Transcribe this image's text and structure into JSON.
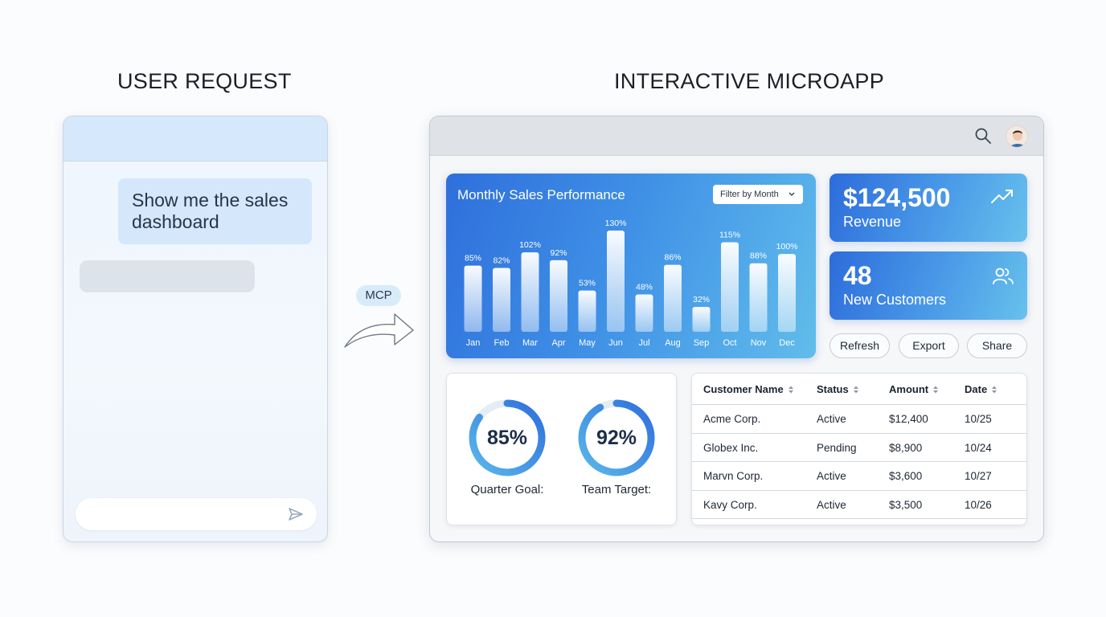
{
  "sections": {
    "left_title": "USER REQUEST",
    "right_title": "INTERACTIVE MICROAPP"
  },
  "chat": {
    "user_message": "Show me the sales dashboard",
    "input_placeholder": "",
    "send_icon": "send-icon"
  },
  "connector": {
    "label": "MCP",
    "icon": "curved-arrow-icon"
  },
  "app": {
    "topbar": {
      "search_icon": "search-icon",
      "avatar_icon": "user-avatar"
    },
    "chart_card": {
      "title": "Monthly Sales Performance",
      "filter_label": "Filter by Month",
      "filter_icon": "chevron-down-icon"
    },
    "stats": [
      {
        "value": "$124,500",
        "label": "Revenue",
        "icon": "trend-up-icon"
      },
      {
        "value": "48",
        "label": "New Customers",
        "icon": "users-icon"
      }
    ],
    "buttons": {
      "refresh": "Refresh",
      "export": "Export",
      "share": "Share"
    },
    "gauges": [
      {
        "percent": "85%",
        "label": "Quarter Goal:",
        "fraction": 0.85
      },
      {
        "percent": "92%",
        "label": "Team Target:",
        "fraction": 0.92
      }
    ],
    "table": {
      "headers": [
        "Customer Name",
        "Status",
        "Amount",
        "Date"
      ],
      "rows": [
        [
          "Acme Corp.",
          "Active",
          "$12,400",
          "10/25"
        ],
        [
          "Globex Inc.",
          "Pending",
          "$8,900",
          "10/24"
        ],
        [
          "Marvn Corp.",
          "Active",
          "$3,600",
          "10/27"
        ],
        [
          "Kavy Corp.",
          "Active",
          "$3,500",
          "10/26"
        ]
      ]
    }
  },
  "colors": {
    "accent_blue": "#2f6fdc",
    "accent_cyan": "#61bdeb",
    "chat_bubble": "#d4e7fb",
    "gauge_track": "#e4ecf5"
  },
  "chart_data": {
    "type": "bar",
    "title": "Monthly Sales Performance",
    "categories": [
      "Jan",
      "Feb",
      "Mar",
      "Apr",
      "May",
      "Jun",
      "Jul",
      "Aug",
      "Sep",
      "Oct",
      "Nov",
      "Dec"
    ],
    "values": [
      85,
      82,
      102,
      92,
      53,
      130,
      48,
      86,
      32,
      115,
      88,
      100
    ],
    "data_labels": [
      "85%",
      "82%",
      "102%",
      "92%",
      "53%",
      "130%",
      "48%",
      "86%",
      "32%",
      "115%",
      "88%",
      "100%"
    ],
    "xlabel": "",
    "ylabel": "",
    "grid": false,
    "legend": "none"
  }
}
